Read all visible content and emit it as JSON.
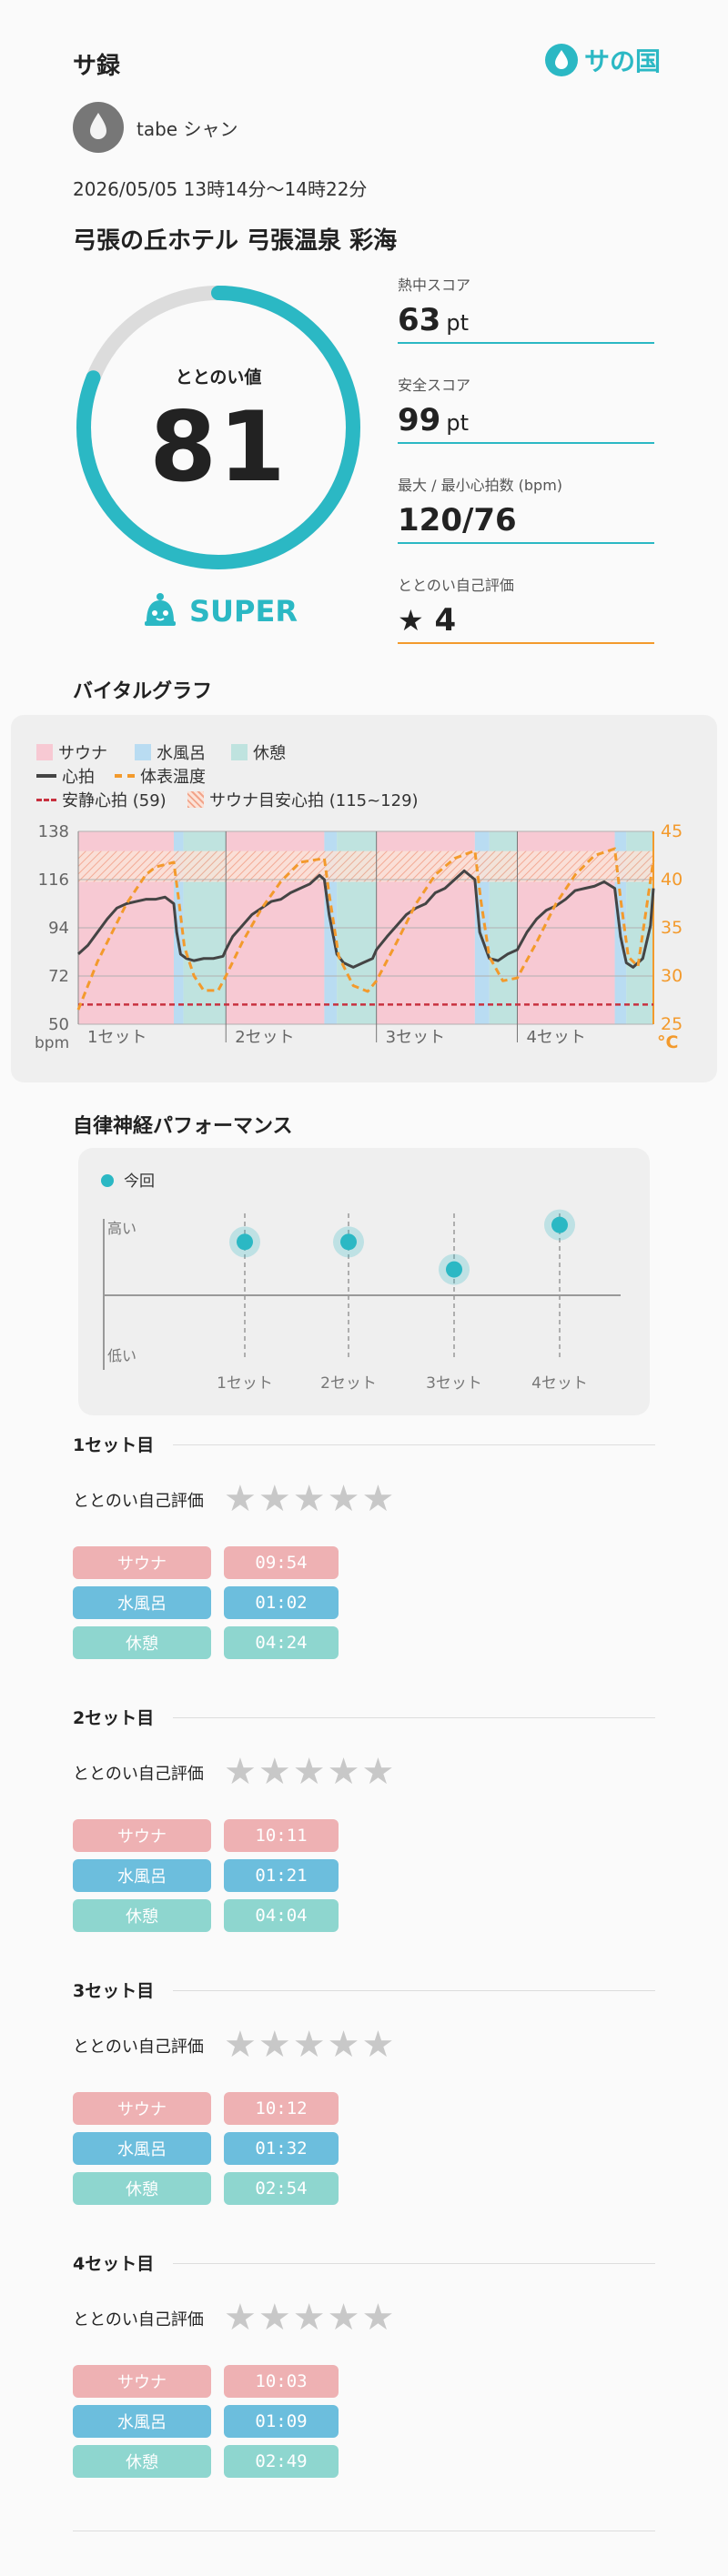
{
  "header": {
    "title": "サ録",
    "logo_text": "サの国"
  },
  "user": {
    "name": "tabe シャン"
  },
  "session": {
    "datetime": "2026/05/05 13時14分〜14時22分",
    "facility": "弓張の丘ホテル 弓張温泉 彩海"
  },
  "totonoi": {
    "label": "ととのい値",
    "value": "81",
    "progress": 0.81,
    "rank": "SUPER"
  },
  "metrics": [
    {
      "label": "熱中スコア",
      "value": "63",
      "unit": "pt"
    },
    {
      "label": "安全スコア",
      "value": "99",
      "unit": "pt"
    },
    {
      "label": "最大 / 最小心拍数 (bpm)",
      "value": "120/76",
      "unit": ""
    },
    {
      "label": "ととのい自己評価",
      "value": "4",
      "unit": "",
      "icon": "star-icon"
    }
  ],
  "vital": {
    "title": "バイタルグラフ",
    "legend": {
      "sauna": "サウナ",
      "water": "水風呂",
      "rest": "休憩",
      "hr": "心拍",
      "temp": "体表温度",
      "resting": "安静心拍 (59)",
      "target": "サウナ目安心拍 (115~129)"
    },
    "left_unit": "bpm",
    "right_unit": "°C",
    "colors": {
      "sauna": "#f7c9d3",
      "water": "#b9dcf2",
      "rest": "#bfe3df",
      "hr": "#444444",
      "temp": "#f39a2c",
      "resting": "#c8313f",
      "target": "#f2a48a"
    }
  },
  "chart_data": [
    {
      "type": "line",
      "title": "",
      "y_left": {
        "ticks": [
          138,
          116,
          94,
          72,
          50
        ],
        "range": [
          50,
          138
        ],
        "unit": "bpm"
      },
      "y_right": {
        "ticks": [
          45,
          40,
          35,
          30,
          25
        ],
        "range": [
          25,
          45
        ],
        "unit": "°C"
      },
      "x_categories": [
        "1セット",
        "2セット",
        "3セット",
        "4セット"
      ],
      "resting_hr": 59,
      "target_hr_range": [
        115,
        129
      ],
      "segments": [
        {
          "phase": "sauna",
          "start": 0,
          "end": 9.9
        },
        {
          "phase": "water",
          "start": 9.9,
          "end": 10.9
        },
        {
          "phase": "rest",
          "start": 10.9,
          "end": 15.3
        },
        {
          "phase": "sauna",
          "start": 15.3,
          "end": 25.5
        },
        {
          "phase": "water",
          "start": 25.5,
          "end": 26.8
        },
        {
          "phase": "rest",
          "start": 26.8,
          "end": 30.9
        },
        {
          "phase": "sauna",
          "start": 30.9,
          "end": 41.1
        },
        {
          "phase": "water",
          "start": 41.1,
          "end": 42.6
        },
        {
          "phase": "rest",
          "start": 42.6,
          "end": 45.5
        },
        {
          "phase": "sauna",
          "start": 45.5,
          "end": 55.6
        },
        {
          "phase": "water",
          "start": 55.6,
          "end": 56.8
        },
        {
          "phase": "rest",
          "start": 56.8,
          "end": 59.6
        }
      ],
      "series": [
        {
          "name": "心拍",
          "axis": "left",
          "points": [
            [
              0,
              82
            ],
            [
              1,
              86
            ],
            [
              2,
              92
            ],
            [
              3,
              98
            ],
            [
              4,
              103
            ],
            [
              5,
              105
            ],
            [
              6,
              106
            ],
            [
              7,
              107
            ],
            [
              8,
              107
            ],
            [
              9,
              108
            ],
            [
              9.9,
              105
            ],
            [
              10.2,
              92
            ],
            [
              10.6,
              82
            ],
            [
              11.2,
              80
            ],
            [
              12,
              79
            ],
            [
              13,
              80
            ],
            [
              14,
              80
            ],
            [
              15,
              81
            ],
            [
              15.3,
              84
            ],
            [
              16,
              90
            ],
            [
              17,
              95
            ],
            [
              18,
              100
            ],
            [
              19,
              103
            ],
            [
              20,
              106
            ],
            [
              21,
              107
            ],
            [
              22,
              110
            ],
            [
              23,
              112
            ],
            [
              24,
              114
            ],
            [
              25,
              118
            ],
            [
              25.5,
              116
            ],
            [
              26,
              100
            ],
            [
              26.8,
              82
            ],
            [
              27.5,
              78
            ],
            [
              28.5,
              76
            ],
            [
              29.5,
              78
            ],
            [
              30.5,
              80
            ],
            [
              30.9,
              84
            ],
            [
              32,
              90
            ],
            [
              33,
              95
            ],
            [
              34,
              100
            ],
            [
              35,
              103
            ],
            [
              36,
              105
            ],
            [
              37,
              110
            ],
            [
              38,
              112
            ],
            [
              39,
              116
            ],
            [
              40,
              120
            ],
            [
              41.1,
              116
            ],
            [
              41.6,
              92
            ],
            [
              42.6,
              80
            ],
            [
              43.5,
              79
            ],
            [
              44.5,
              82
            ],
            [
              45.5,
              84
            ],
            [
              46.5,
              92
            ],
            [
              47.5,
              98
            ],
            [
              48.5,
              102
            ],
            [
              49.5,
              104
            ],
            [
              50.5,
              107
            ],
            [
              51.5,
              111
            ],
            [
              52.5,
              112
            ],
            [
              53.5,
              113
            ],
            [
              54.5,
              115
            ],
            [
              55.6,
              112
            ],
            [
              56.2,
              90
            ],
            [
              56.8,
              78
            ],
            [
              57.5,
              76
            ],
            [
              58.5,
              80
            ],
            [
              59.3,
              95
            ],
            [
              59.6,
              112
            ]
          ]
        },
        {
          "name": "体表温度",
          "axis": "right",
          "points": [
            [
              0,
              26.5
            ],
            [
              1,
              29
            ],
            [
              2,
              31.5
            ],
            [
              3,
              33.5
            ],
            [
              4,
              35.5
            ],
            [
              5,
              37.5
            ],
            [
              6,
              39
            ],
            [
              7,
              40.5
            ],
            [
              8,
              41.3
            ],
            [
              9.9,
              41.8
            ],
            [
              10.4,
              38
            ],
            [
              11,
              33
            ],
            [
              12,
              30
            ],
            [
              13,
              28.5
            ],
            [
              14.5,
              28.5
            ],
            [
              15.3,
              30
            ],
            [
              17,
              33.5
            ],
            [
              19,
              37
            ],
            [
              21,
              39.8
            ],
            [
              23,
              41.8
            ],
            [
              25.5,
              42.2
            ],
            [
              26,
              38.5
            ],
            [
              27,
              32
            ],
            [
              28.5,
              29
            ],
            [
              30,
              28.4
            ],
            [
              30.9,
              29.5
            ],
            [
              33,
              33.5
            ],
            [
              35,
              37.5
            ],
            [
              37,
              40.5
            ],
            [
              39,
              42.2
            ],
            [
              41.1,
              43
            ],
            [
              41.7,
              38
            ],
            [
              42.6,
              32
            ],
            [
              44,
              29.5
            ],
            [
              45.5,
              29.8
            ],
            [
              47.5,
              33.5
            ],
            [
              49.5,
              37.5
            ],
            [
              51.5,
              40.5
            ],
            [
              53.5,
              42.5
            ],
            [
              55.6,
              43.2
            ],
            [
              56.2,
              38
            ],
            [
              57,
              32
            ],
            [
              58,
              31
            ],
            [
              59.6,
              42
            ]
          ]
        }
      ]
    },
    {
      "type": "scatter",
      "title": "自律神経パフォーマンス",
      "legend": [
        "今回"
      ],
      "y_labels": [
        "高い",
        "低い"
      ],
      "x_categories": [
        "1セット",
        "2セット",
        "3セット",
        "4セット"
      ],
      "values": [
        0.62,
        0.62,
        0.2,
        0.88
      ],
      "note": "values are relative level (0=axis line, 1=top)"
    }
  ],
  "perf": {
    "title": "自律神経パフォーマンス",
    "legend": "今回",
    "high": "高い",
    "low": "低い",
    "sets": [
      "1セット",
      "2セット",
      "3セット",
      "4セット"
    ]
  },
  "sets": [
    {
      "title": "1セット目",
      "self_eval_label": "ととのい自己評価",
      "rows": [
        {
          "label": "サウナ",
          "time": "09:54"
        },
        {
          "label": "水風呂",
          "time": "01:02"
        },
        {
          "label": "休憩",
          "time": "04:24"
        }
      ]
    },
    {
      "title": "2セット目",
      "self_eval_label": "ととのい自己評価",
      "rows": [
        {
          "label": "サウナ",
          "time": "10:11"
        },
        {
          "label": "水風呂",
          "time": "01:21"
        },
        {
          "label": "休憩",
          "time": "04:04"
        }
      ]
    },
    {
      "title": "3セット目",
      "self_eval_label": "ととのい自己評価",
      "rows": [
        {
          "label": "サウナ",
          "time": "10:12"
        },
        {
          "label": "水風呂",
          "time": "01:32"
        },
        {
          "label": "休憩",
          "time": "02:54"
        }
      ]
    },
    {
      "title": "4セット目",
      "self_eval_label": "ととのい自己評価",
      "rows": [
        {
          "label": "サウナ",
          "time": "10:03"
        },
        {
          "label": "水風呂",
          "time": "01:09"
        },
        {
          "label": "休憩",
          "time": "02:49"
        }
      ]
    }
  ]
}
